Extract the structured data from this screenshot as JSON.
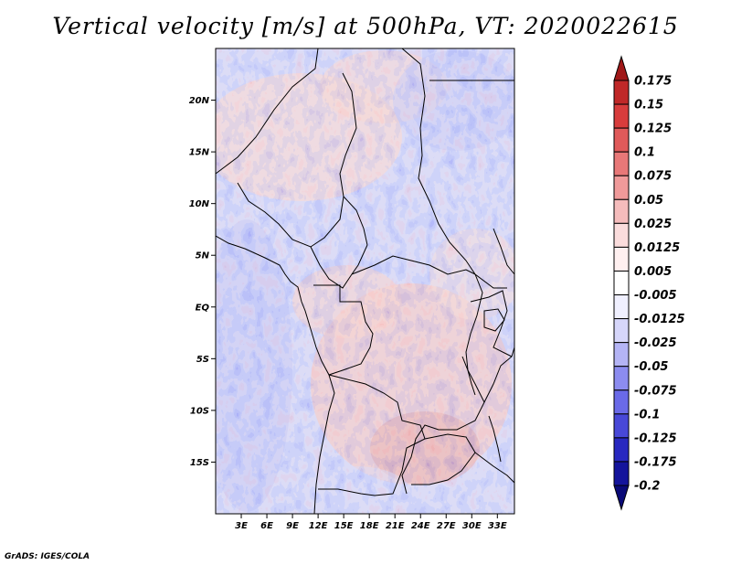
{
  "title": "Vertical velocity [m/s] at 500hPa, VT: 2020022615",
  "credit": "GrADS: IGES/COLA",
  "map": {
    "lon_range": [
      0,
      35
    ],
    "lat_range": [
      -20,
      25
    ],
    "lat_ticks": [
      {
        "value": 20,
        "label": "20N"
      },
      {
        "value": 15,
        "label": "15N"
      },
      {
        "value": 10,
        "label": "10N"
      },
      {
        "value": 5,
        "label": "5N"
      },
      {
        "value": 0,
        "label": "EQ"
      },
      {
        "value": -5,
        "label": "5S"
      },
      {
        "value": -10,
        "label": "10S"
      },
      {
        "value": -15,
        "label": "15S"
      }
    ],
    "lon_ticks": [
      {
        "value": 3,
        "label": "3E"
      },
      {
        "value": 6,
        "label": "6E"
      },
      {
        "value": 9,
        "label": "9E"
      },
      {
        "value": 12,
        "label": "12E"
      },
      {
        "value": 15,
        "label": "15E"
      },
      {
        "value": 18,
        "label": "18E"
      },
      {
        "value": 21,
        "label": "21E"
      },
      {
        "value": 24,
        "label": "24E"
      },
      {
        "value": 27,
        "label": "27E"
      },
      {
        "value": 30,
        "label": "30E"
      },
      {
        "value": 33,
        "label": "33E"
      }
    ]
  },
  "colorbar": {
    "labels": [
      "0.175",
      "0.15",
      "0.125",
      "0.1",
      "0.075",
      "0.05",
      "0.025",
      "0.0125",
      "0.005",
      "-0.005",
      "-0.0125",
      "-0.025",
      "-0.05",
      "-0.075",
      "-0.1",
      "-0.125",
      "-0.175",
      "-0.2"
    ],
    "colors": [
      "#a01818",
      "#c02828",
      "#d83c3c",
      "#e05a5a",
      "#e87878",
      "#f09a9a",
      "#f5bcbc",
      "#fadcdc",
      "#fff0f0",
      "#ffffff",
      "#f0f0ff",
      "#d6d6fa",
      "#b4b4f5",
      "#8c8cf0",
      "#6a6ae8",
      "#4848d8",
      "#2828c0",
      "#14149c",
      "#0a0a78"
    ]
  }
}
